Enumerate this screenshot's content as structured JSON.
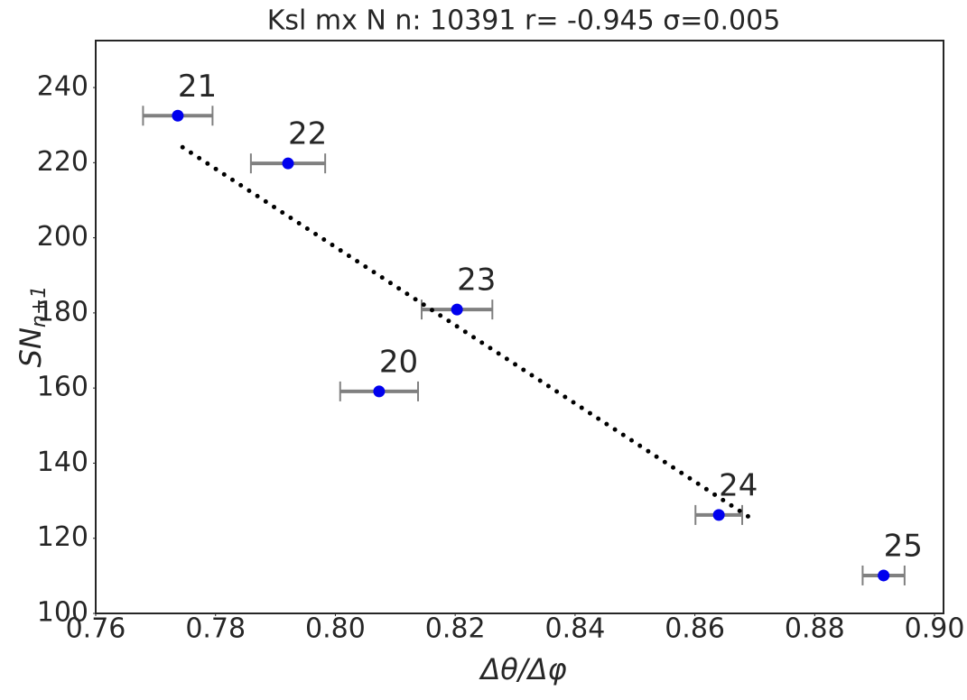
{
  "chart_data": {
    "type": "scatter",
    "title": "Ksl  mx N n: 10391 r= -0.945  σ=0.005",
    "xlabel": "Δθ/Δφ",
    "ylabel": {
      "main": "SN",
      "sub": "n+1"
    },
    "xlim": [
      0.76,
      0.9015
    ],
    "ylim": [
      100,
      252.5
    ],
    "xticks": [
      {
        "value": 0.76,
        "label": "0.76"
      },
      {
        "value": 0.78,
        "label": "0.78"
      },
      {
        "value": 0.8,
        "label": "0.80"
      },
      {
        "value": 0.82,
        "label": "0.82"
      },
      {
        "value": 0.84,
        "label": "0.84"
      },
      {
        "value": 0.86,
        "label": "0.86"
      },
      {
        "value": 0.88,
        "label": "0.88"
      },
      {
        "value": 0.9,
        "label": "0.90"
      }
    ],
    "yticks": [
      100,
      120,
      140,
      160,
      180,
      200,
      220,
      240
    ],
    "series": [
      {
        "color": "#0000ee",
        "error_color": "#808080",
        "x": [
          0.7737,
          0.7921,
          0.8203,
          0.8073,
          0.864,
          0.8915
        ],
        "values": [
          232.5,
          219.8,
          180.9,
          159.1,
          126.2,
          110.1
        ],
        "xerr": [
          0.0058,
          0.0062,
          0.0059,
          0.0065,
          0.0039,
          0.0035
        ],
        "labels": [
          "21",
          "22",
          "23",
          "20",
          "24",
          "25"
        ]
      },
      {
        "color": "#000000",
        "style": "dotted",
        "x": [
          0.7745,
          0.869
        ],
        "values": [
          224.1,
          125.7
        ]
      }
    ]
  }
}
